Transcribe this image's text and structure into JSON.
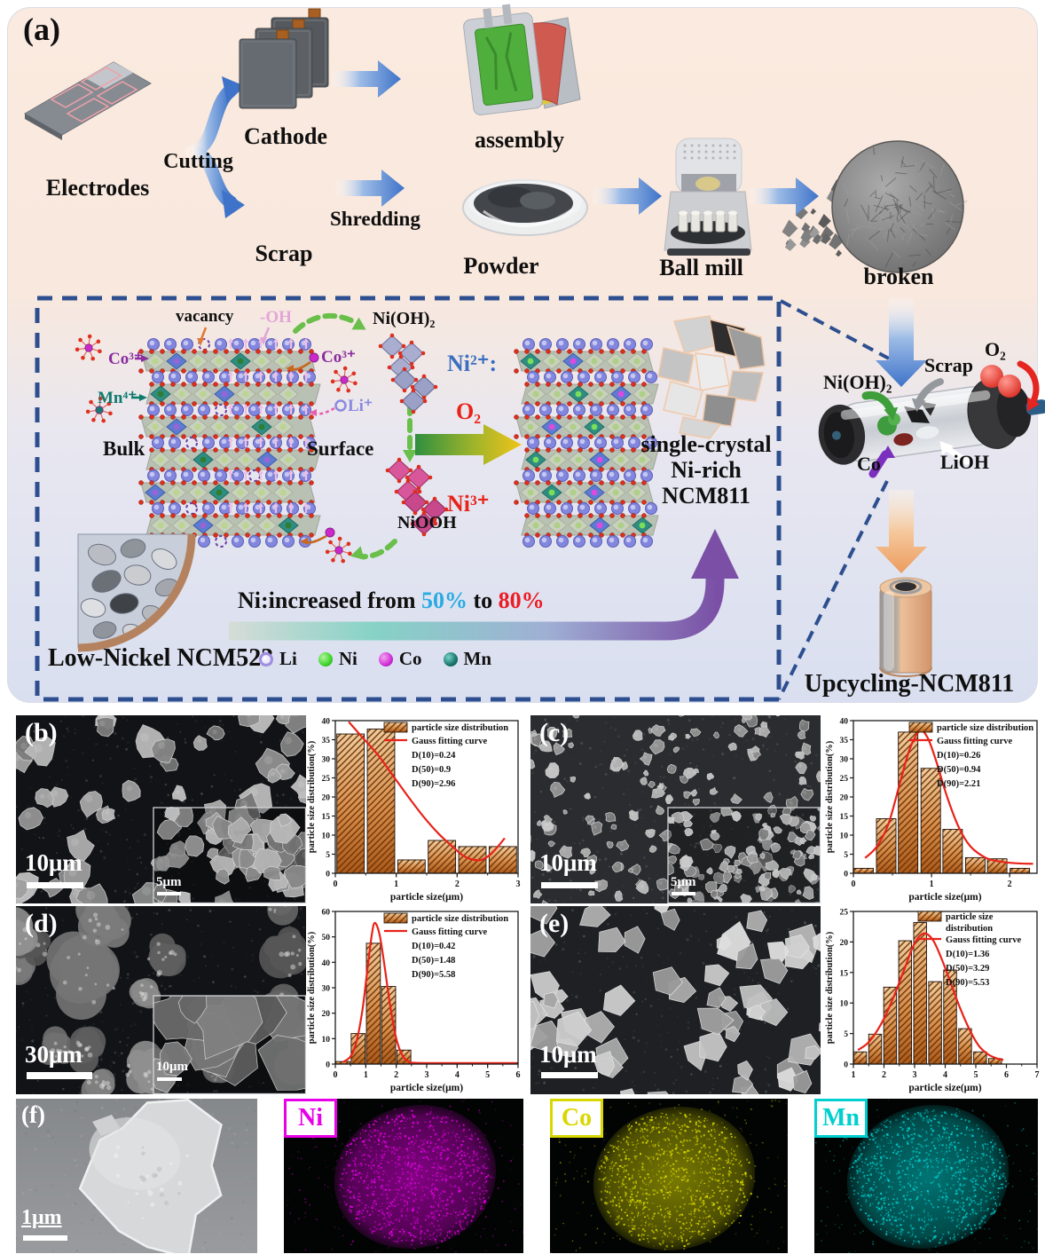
{
  "colors": {
    "dashed_border": "#2e4f8f",
    "blue_arrow": "#3e73c9",
    "ni2_blue": "#3a6fc0",
    "red_accent": "#e8231a",
    "pct50_blue": "#29abe2",
    "pct80_red": "#ed1c24",
    "bar_top": "#f0cd9e",
    "bar_mid": "#d98e4a",
    "bar_bottom": "#ad5a19",
    "gauss_red": "#e8231a"
  },
  "panel_a": {
    "label": "(a)",
    "steps": {
      "electrodes": "Electrodes",
      "cutting": "Cutting",
      "cathode": "Cathode",
      "assembly": "assembly",
      "scrap": "Scrap",
      "shredding": "Shredding",
      "powder": "Powder",
      "ball_mill": "Ball mill",
      "broken": "broken"
    },
    "mechanism": {
      "vacancy": "vacancy",
      "hydroxyl": "-OH",
      "co3_bulk": "Co³⁺",
      "mn4_bulk": "Mn⁴⁺",
      "bulk": "Bulk",
      "surface": "Surface",
      "co3_surface": "Co³⁺",
      "li_ion": "Li⁺",
      "nioh2": "Ni(OH)₂",
      "ni2": "Ni²⁺:",
      "o2": "O₂",
      "ni3": "Ni³⁺",
      "niooh": "NiOOH",
      "product_line1": "single-crystal",
      "product_line2": "Ni-rich",
      "product_line3": "NCM811",
      "ni_increase": {
        "prefix": "Ni:increased from ",
        "from": "50%",
        "mid": " to ",
        "to": "80%"
      },
      "source_label": "Low-Nickel NCM523",
      "legend": [
        {
          "label": "Li"
        },
        {
          "label": "Ni"
        },
        {
          "label": "Co"
        },
        {
          "label": "Mn"
        }
      ]
    },
    "reactor": {
      "nioh2": "Ni(OH)₂",
      "scrap": "Scrap",
      "o2": "O₂",
      "co": "Co",
      "lioh": "LiOH",
      "product": "Upcycling-NCM811"
    }
  },
  "sem_panels": {
    "b": {
      "label": "(b)",
      "scale": "10μm",
      "inset_scale": "5μm"
    },
    "c": {
      "label": "(c)",
      "scale": "10μm",
      "inset_scale": "5μm"
    },
    "d": {
      "label": "(d)",
      "scale": "30μm",
      "inset_scale": "10μm"
    },
    "e": {
      "label": "(e)",
      "scale": "10μm"
    }
  },
  "chart_data": [
    {
      "id": "b",
      "type": "bar",
      "xlabel": "particle size(μm)",
      "ylabel": "particle size distribution(%)",
      "xlim": [
        0,
        3
      ],
      "ylim": [
        0,
        40
      ],
      "xticks": [
        0,
        1,
        2,
        3
      ],
      "yticks": [
        0,
        5,
        10,
        15,
        20,
        25,
        30,
        35,
        40
      ],
      "legend": [
        "particle size distribution",
        "Gauss fitting curve"
      ],
      "stats": [
        "D(10)=0.24",
        "D(50)=0.9",
        "D(90)=2.96"
      ],
      "bar_centers": [
        0.25,
        0.75,
        1.25,
        1.75,
        2.25,
        2.75
      ],
      "bar_width": 0.45,
      "bar_values": [
        36.5,
        37.8,
        3.5,
        8.6,
        7.0,
        7.0
      ],
      "gauss_curve": [
        [
          0.22,
          39.7
        ],
        [
          0.45,
          35.5
        ],
        [
          0.7,
          31
        ],
        [
          0.95,
          25.5
        ],
        [
          1.2,
          20
        ],
        [
          1.45,
          14.8
        ],
        [
          1.7,
          10.3
        ],
        [
          1.95,
          6.6
        ],
        [
          2.1,
          4.6
        ],
        [
          2.25,
          3.6
        ],
        [
          2.4,
          3.5
        ],
        [
          2.55,
          5
        ],
        [
          2.7,
          7.6
        ],
        [
          2.78,
          9.2
        ]
      ]
    },
    {
      "id": "c",
      "type": "bar",
      "xlabel": "particle size(μm)",
      "ylabel": "particle size distribution(%)",
      "xlim": [
        0,
        2.35
      ],
      "ylim": [
        0,
        40
      ],
      "xticks": [
        0,
        1,
        2
      ],
      "yticks": [
        0,
        5,
        10,
        15,
        20,
        25,
        30,
        35,
        40
      ],
      "legend": [
        "particle size distribution",
        "Gauss fitting curve"
      ],
      "stats": [
        "D(10)=0.26",
        "D(50)=0.94",
        "D(90)=2.21"
      ],
      "bar_centers": [
        0.13,
        0.42,
        0.7,
        0.99,
        1.27,
        1.56,
        1.84,
        2.13
      ],
      "bar_width": 0.25,
      "bar_values": [
        1.3,
        14.3,
        37.0,
        27.5,
        11.5,
        4.1,
        3.8,
        1.3
      ],
      "gauss_curve": [
        [
          0.15,
          4
        ],
        [
          0.3,
          7
        ],
        [
          0.45,
          13
        ],
        [
          0.6,
          24
        ],
        [
          0.72,
          32.5
        ],
        [
          0.85,
          37.3
        ],
        [
          0.95,
          35.5
        ],
        [
          1.05,
          30
        ],
        [
          1.2,
          20
        ],
        [
          1.35,
          12
        ],
        [
          1.5,
          7
        ],
        [
          1.7,
          4
        ],
        [
          1.9,
          3
        ],
        [
          2.1,
          2.6
        ],
        [
          2.3,
          2.5
        ]
      ]
    },
    {
      "id": "d",
      "type": "bar",
      "xlabel": "particle size(μm)",
      "ylabel": "particle size distribution(%)",
      "xlim": [
        0,
        6
      ],
      "ylim": [
        0,
        60
      ],
      "xticks": [
        0,
        1,
        2,
        3,
        4,
        5,
        6
      ],
      "yticks": [
        0,
        10,
        20,
        30,
        40,
        50,
        60
      ],
      "legend": [
        "particle size distribution",
        "Gauss fitting curve"
      ],
      "stats": [
        "D(10)=0.42",
        "D(50)=1.48",
        "D(90)=5.58"
      ],
      "bar_centers": [
        0.25,
        0.75,
        1.25,
        1.75,
        2.25,
        2.75,
        3.25,
        3.75,
        4.25,
        4.75,
        5.25,
        5.75
      ],
      "bar_width": 0.46,
      "bar_values": [
        1.0,
        12.0,
        47.5,
        30.5,
        5.5,
        0.5,
        0.5,
        0.5,
        0.5,
        0.5,
        0.5,
        0.5
      ],
      "gauss_curve": [
        [
          0.25,
          0.8
        ],
        [
          0.5,
          3
        ],
        [
          0.7,
          9
        ],
        [
          0.9,
          22
        ],
        [
          1.05,
          37
        ],
        [
          1.2,
          51
        ],
        [
          1.3,
          55.5
        ],
        [
          1.45,
          51
        ],
        [
          1.6,
          40
        ],
        [
          1.8,
          23
        ],
        [
          2.0,
          10
        ],
        [
          2.2,
          3.5
        ],
        [
          2.4,
          1
        ],
        [
          2.6,
          0.5
        ],
        [
          3.5,
          0.4
        ],
        [
          4.5,
          0.4
        ],
        [
          5.5,
          0.4
        ],
        [
          5.95,
          0.4
        ]
      ]
    },
    {
      "id": "e",
      "type": "bar",
      "xlabel": "particle size(μm)",
      "ylabel": "particle size distribution(%)",
      "xlim": [
        1,
        7
      ],
      "ylim": [
        0,
        25
      ],
      "xticks": [
        1,
        2,
        3,
        4,
        5,
        6,
        7
      ],
      "yticks": [
        0,
        5,
        10,
        15,
        20,
        25
      ],
      "legend": [
        "particle size distribution",
        "Gauss fitting curve"
      ],
      "stats": [
        "D(10)=1.36",
        "D(50)=3.29",
        "D(90)=5.53"
      ],
      "bar_centers": [
        1.22,
        1.71,
        2.2,
        2.69,
        3.18,
        3.67,
        4.16,
        4.65,
        5.14,
        5.63
      ],
      "bar_width": 0.42,
      "bar_values": [
        2.0,
        4.9,
        12.6,
        20.2,
        23.2,
        13.5,
        15.4,
        5.8,
        2.0,
        0.9
      ],
      "gauss_curve": [
        [
          1.15,
          2.3
        ],
        [
          1.5,
          3.6
        ],
        [
          1.9,
          6.5
        ],
        [
          2.3,
          10.8
        ],
        [
          2.7,
          16
        ],
        [
          3.0,
          19.8
        ],
        [
          3.3,
          21.4
        ],
        [
          3.6,
          20.3
        ],
        [
          3.9,
          17
        ],
        [
          4.2,
          13
        ],
        [
          4.5,
          9
        ],
        [
          4.8,
          5.6
        ],
        [
          5.1,
          3
        ],
        [
          5.4,
          1.6
        ],
        [
          5.7,
          0.9
        ],
        [
          5.9,
          0.7
        ]
      ]
    }
  ],
  "panel_f": {
    "label": "(f)",
    "scale": "1μm",
    "maps": [
      {
        "label": "Ni",
        "color": "#e800e8"
      },
      {
        "label": "Co",
        "color": "#d8d800"
      },
      {
        "label": "Mn",
        "color": "#00cfcf"
      }
    ]
  }
}
